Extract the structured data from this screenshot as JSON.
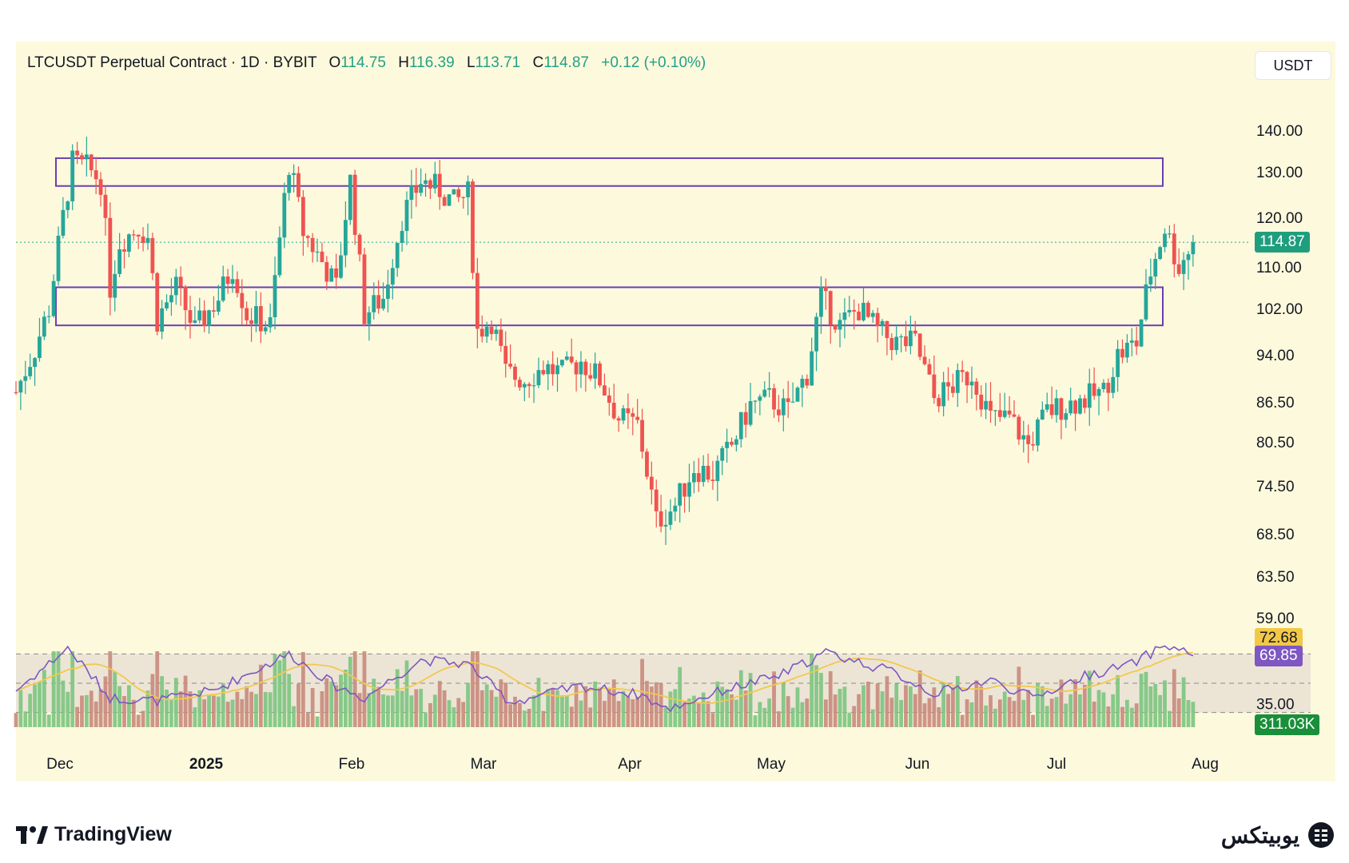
{
  "header": {
    "symbol": "LTCUSDT Perpetual Contract",
    "interval": "1D",
    "exchange": "BYBIT",
    "open_label": "O",
    "open": "114.75",
    "high_label": "H",
    "high": "116.39",
    "low_label": "L",
    "low": "113.71",
    "close_label": "C",
    "close": "114.87",
    "change": "+0.12 (+0.10%)"
  },
  "currency_button": "USDT",
  "badges": {
    "last_price": "114.87",
    "rsi_ma": "72.68",
    "rsi": "69.85",
    "volume": "311.03K"
  },
  "footer": {
    "brand_left": "TradingView",
    "brand_right": "یوبیتکس"
  },
  "colors": {
    "up": "#26a69a",
    "down": "#ef5350",
    "rsi_line": "#7e57c2",
    "rsi_ma": "#f2c94c",
    "zone_border": "#6a3fb5",
    "bg": "#fdf9dc"
  },
  "chart_data": {
    "type": "candlestick",
    "price_axis_ticks": [
      "140.00",
      "130.00",
      "120.00",
      "110.00",
      "102.00",
      "94.00",
      "86.50",
      "80.50",
      "74.50",
      "68.50",
      "63.50",
      "59.00"
    ],
    "price_axis_scale": "log",
    "ylim": [
      59,
      150
    ],
    "indicator_axis_ticks": [
      "35.00"
    ],
    "time_axis_ticks": [
      "Dec",
      "2025",
      "Feb",
      "Mar",
      "Apr",
      "May",
      "Jun",
      "Jul",
      "Aug"
    ],
    "x_range": [
      "2024-11-20",
      "2025-08-05"
    ],
    "zones": [
      {
        "from": 126.8,
        "to": 133.2
      },
      {
        "from": 99.0,
        "to": 106.0
      }
    ],
    "last_price": 114.87,
    "rsi_levels": [
      70,
      50,
      30
    ],
    "rsi_last": 69.85,
    "rsi_ma_last": 72.68,
    "volume_last": "311.03K",
    "close_path": [
      [
        "2024-11-20",
        88
      ],
      [
        "2024-11-24",
        95
      ],
      [
        "2024-11-27",
        102
      ],
      [
        "2024-11-30",
        120
      ],
      [
        "2024-12-02",
        132
      ],
      [
        "2024-12-05",
        131
      ],
      [
        "2024-12-08",
        128
      ],
      [
        "2024-12-10",
        106
      ],
      [
        "2024-12-12",
        115
      ],
      [
        "2024-12-16",
        118
      ],
      [
        "2024-12-18",
        116
      ],
      [
        "2024-12-20",
        100
      ],
      [
        "2024-12-24",
        106
      ],
      [
        "2024-12-28",
        98
      ],
      [
        "2025-01-02",
        104
      ],
      [
        "2025-01-05",
        110
      ],
      [
        "2025-01-08",
        101
      ],
      [
        "2025-01-13",
        99
      ],
      [
        "2025-01-17",
        132
      ],
      [
        "2025-01-20",
        117
      ],
      [
        "2025-01-24",
        111
      ],
      [
        "2025-01-27",
        106
      ],
      [
        "2025-01-30",
        128
      ],
      [
        "2025-02-02",
        101
      ],
      [
        "2025-02-06",
        104
      ],
      [
        "2025-02-10",
        120
      ],
      [
        "2025-02-14",
        128
      ],
      [
        "2025-02-18",
        126
      ],
      [
        "2025-02-21",
        123
      ],
      [
        "2025-02-24",
        125
      ],
      [
        "2025-02-26",
        98
      ],
      [
        "2025-03-01",
        100
      ],
      [
        "2025-03-04",
        91
      ],
      [
        "2025-03-08",
        90
      ],
      [
        "2025-03-12",
        92
      ],
      [
        "2025-03-16",
        91
      ],
      [
        "2025-03-20",
        93
      ],
      [
        "2025-03-24",
        90
      ],
      [
        "2025-03-28",
        84
      ],
      [
        "2025-04-01",
        83
      ],
      [
        "2025-04-05",
        70
      ],
      [
        "2025-04-09",
        72
      ],
      [
        "2025-04-13",
        77
      ],
      [
        "2025-04-17",
        76
      ],
      [
        "2025-04-21",
        80
      ],
      [
        "2025-04-25",
        86
      ],
      [
        "2025-04-29",
        87
      ],
      [
        "2025-05-03",
        85
      ],
      [
        "2025-05-07",
        91
      ],
      [
        "2025-05-10",
        104
      ],
      [
        "2025-05-14",
        99
      ],
      [
        "2025-05-18",
        102
      ],
      [
        "2025-05-22",
        98
      ],
      [
        "2025-05-26",
        96
      ],
      [
        "2025-05-30",
        96
      ],
      [
        "2025-06-03",
        87
      ],
      [
        "2025-06-07",
        89
      ],
      [
        "2025-06-11",
        91
      ],
      [
        "2025-06-15",
        84
      ],
      [
        "2025-06-19",
        84
      ],
      [
        "2025-06-23",
        80
      ],
      [
        "2025-06-27",
        85
      ],
      [
        "2025-07-01",
        86
      ],
      [
        "2025-07-05",
        87
      ],
      [
        "2025-07-09",
        88
      ],
      [
        "2025-07-12",
        94
      ],
      [
        "2025-07-16",
        96
      ],
      [
        "2025-07-19",
        109
      ],
      [
        "2025-07-22",
        118
      ],
      [
        "2025-07-25",
        110
      ],
      [
        "2025-07-28",
        114.87
      ]
    ],
    "rsi_path": [
      [
        "2024-11-20",
        45
      ],
      [
        "2024-12-01",
        74
      ],
      [
        "2024-12-10",
        40
      ],
      [
        "2024-12-20",
        38
      ],
      [
        "2025-01-01",
        45
      ],
      [
        "2025-01-17",
        70
      ],
      [
        "2025-01-27",
        48
      ],
      [
        "2025-02-02",
        40
      ],
      [
        "2025-02-14",
        66
      ],
      [
        "2025-02-24",
        63
      ],
      [
        "2025-03-05",
        37
      ],
      [
        "2025-03-20",
        48
      ],
      [
        "2025-04-02",
        42
      ],
      [
        "2025-04-07",
        32
      ],
      [
        "2025-04-20",
        46
      ],
      [
        "2025-05-01",
        55
      ],
      [
        "2025-05-11",
        71
      ],
      [
        "2025-05-25",
        58
      ],
      [
        "2025-06-03",
        43
      ],
      [
        "2025-06-15",
        52
      ],
      [
        "2025-06-24",
        40
      ],
      [
        "2025-07-05",
        55
      ],
      [
        "2025-07-15",
        63
      ],
      [
        "2025-07-22",
        76
      ],
      [
        "2025-07-28",
        69.85
      ]
    ]
  }
}
